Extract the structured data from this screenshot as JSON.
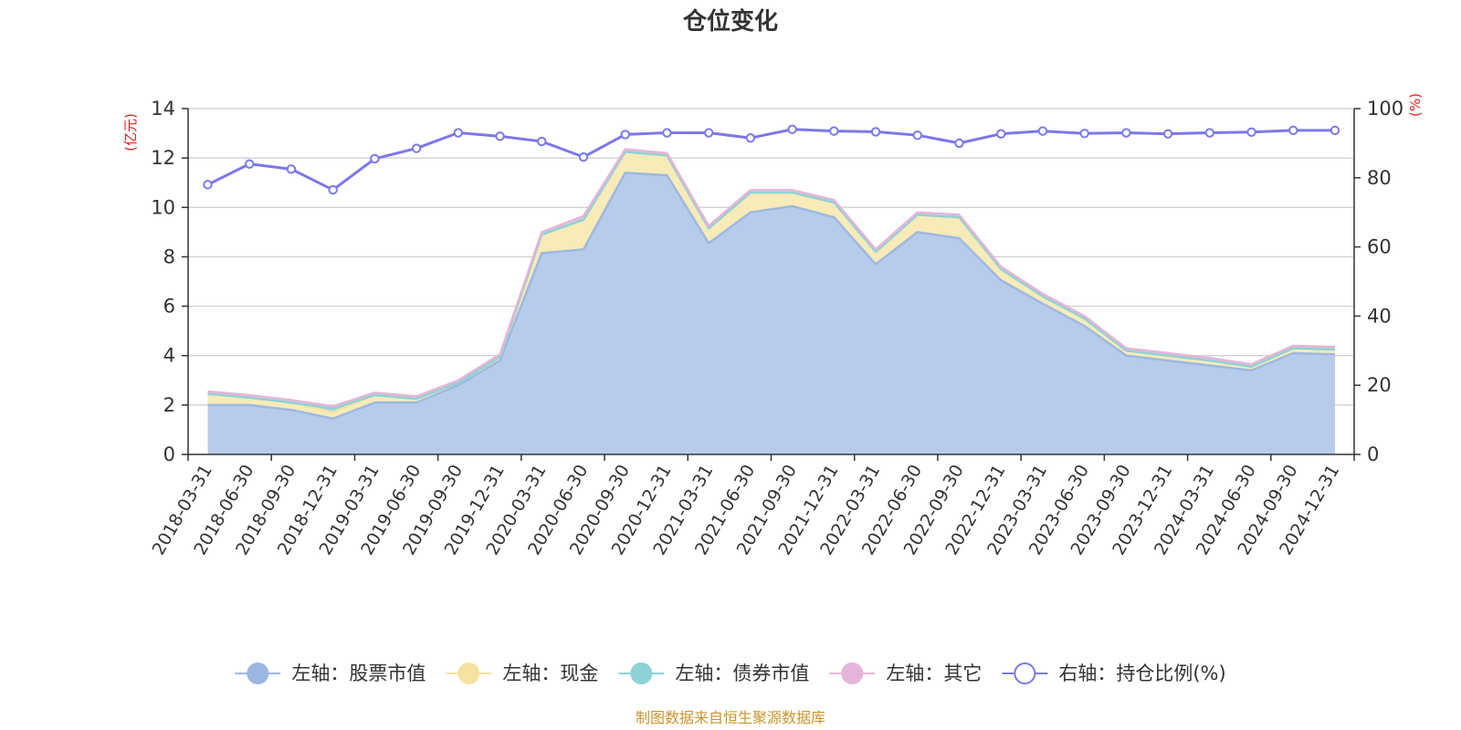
{
  "chart_data": {
    "type": "area",
    "title": "仓位变化",
    "left_axis_unit": "(亿元)",
    "right_axis_unit": "(%)",
    "source": "制图数据来自恒生聚源数据库",
    "x": [
      "2018-03-31",
      "2018-06-30",
      "2018-09-30",
      "2018-12-31",
      "2019-03-31",
      "2019-06-30",
      "2019-09-30",
      "2019-12-31",
      "2020-03-31",
      "2020-06-30",
      "2020-09-30",
      "2020-12-31",
      "2021-03-31",
      "2021-06-30",
      "2021-09-30",
      "2021-12-31",
      "2022-03-31",
      "2022-06-30",
      "2022-09-30",
      "2022-12-31",
      "2023-03-31",
      "2023-06-30",
      "2023-09-30",
      "2023-12-31",
      "2024-03-31",
      "2024-06-30",
      "2024-09-30",
      "2024-12-31"
    ],
    "left_axis": {
      "ylim": [
        0,
        14
      ],
      "ticks": [
        0,
        2,
        4,
        6,
        8,
        10,
        12,
        14
      ]
    },
    "right_axis": {
      "ylim": [
        0,
        100
      ],
      "ticks": [
        0,
        20,
        40,
        60,
        80,
        100
      ]
    },
    "grid": true,
    "legend_placement": "bottom-center",
    "series": [
      {
        "name": "左轴：股票市值",
        "axis": "left",
        "stacked": true,
        "color": "#9db8e0",
        "fill": "#b7cceb",
        "values": [
          2.0,
          2.0,
          1.8,
          1.45,
          2.1,
          2.1,
          2.8,
          3.8,
          8.15,
          8.3,
          11.4,
          11.3,
          8.55,
          9.8,
          10.05,
          9.6,
          7.7,
          9.0,
          8.75,
          7.05,
          6.1,
          5.2,
          4.0,
          3.8,
          3.6,
          3.4,
          4.1,
          4.05
        ]
      },
      {
        "name": "左轴：现金",
        "axis": "left",
        "stacked": true,
        "color": "#f6e3a1",
        "fill": "#f8ebb8",
        "values": [
          0.45,
          0.3,
          0.3,
          0.25,
          0.3,
          0.15,
          0.1,
          0.15,
          0.75,
          1.2,
          0.85,
          0.8,
          0.6,
          0.8,
          0.55,
          0.6,
          0.5,
          0.7,
          0.85,
          0.45,
          0.3,
          0.3,
          0.2,
          0.2,
          0.2,
          0.15,
          0.2,
          0.2
        ]
      },
      {
        "name": "左轴：债券市值",
        "axis": "left",
        "stacked": true,
        "color": "#8dd3d6",
        "fill": "#a6dde0",
        "values": [
          0,
          0,
          0,
          0.15,
          0,
          0,
          0,
          0,
          0,
          0,
          0,
          0,
          0,
          0,
          0,
          0,
          0,
          0,
          0,
          0,
          0,
          0,
          0,
          0,
          0,
          0,
          0,
          0
        ]
      },
      {
        "name": "左轴：其它",
        "axis": "left",
        "stacked": true,
        "color": "#e6b4d9",
        "fill": "#ecc5e2",
        "values": [
          0.1,
          0.1,
          0.1,
          0.1,
          0.1,
          0.1,
          0.1,
          0.1,
          0.1,
          0.15,
          0.1,
          0.1,
          0.1,
          0.1,
          0.1,
          0.1,
          0.1,
          0.1,
          0.1,
          0.1,
          0.1,
          0.1,
          0.1,
          0.1,
          0.1,
          0.1,
          0.1,
          0.1
        ]
      },
      {
        "name": "右轴：持仓比例(%)",
        "axis": "right",
        "stacked": false,
        "color": "#7b78ea",
        "values": [
          78.0,
          84.0,
          82.5,
          76.5,
          85.5,
          88.5,
          93.0,
          92.0,
          90.5,
          86.0,
          92.5,
          93.0,
          93.0,
          91.5,
          94.0,
          93.5,
          93.3,
          92.3,
          90.0,
          92.7,
          93.5,
          92.8,
          93.0,
          92.7,
          93.0,
          93.2,
          93.7,
          93.7
        ]
      }
    ]
  }
}
